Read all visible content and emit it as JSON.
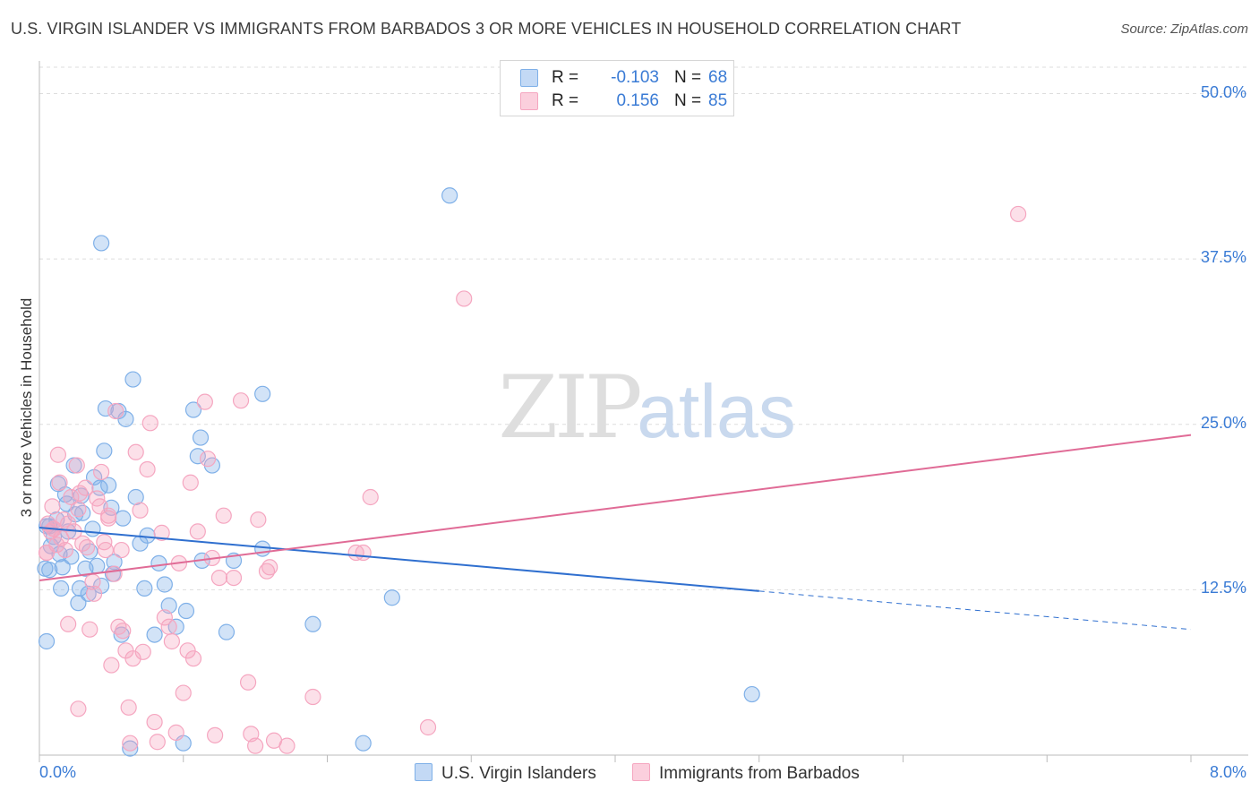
{
  "chart_data": {
    "type": "scatter",
    "title": "U.S. VIRGIN ISLANDER VS IMMIGRANTS FROM BARBADOS 3 OR MORE VEHICLES IN HOUSEHOLD CORRELATION CHART",
    "source": "Source: ZipAtlas.com",
    "ylabel": "3 or more Vehicles in Household",
    "xlabel": "",
    "xlim": [
      0,
      8
    ],
    "ylim": [
      0,
      52
    ],
    "x_tick_labels": {
      "left": "0.0%",
      "right": "8.0%"
    },
    "y_ticks": [
      {
        "value": 50,
        "label": "50.0%"
      },
      {
        "value": 37.5,
        "label": "37.5%"
      },
      {
        "value": 25,
        "label": "25.0%"
      },
      {
        "value": 12.5,
        "label": "12.5%"
      }
    ],
    "watermark": {
      "zip": "ZIP",
      "atlas": "atlas"
    },
    "legend": {
      "series1": {
        "r_label": "R =",
        "r_value": "-0.103",
        "n_label": "N =",
        "n_value": "68"
      },
      "series2": {
        "r_label": "R =",
        "r_value": "0.156",
        "n_label": "N =",
        "n_value": "85"
      }
    },
    "series": [
      {
        "name": "U.S. Virgin Islanders",
        "color": "#7fb0e8",
        "line_color": "#2f6fcf",
        "trend": {
          "x0": 0.0,
          "y0": 17.2,
          "x1": 5.0,
          "y1": 12.4,
          "dash_x1": 8.0,
          "dash_y1": 9.5
        },
        "points": [
          [
            0.05,
            17.3
          ],
          [
            0.07,
            14.0
          ],
          [
            0.08,
            15.8
          ],
          [
            0.1,
            16.5
          ],
          [
            0.12,
            17.8
          ],
          [
            0.13,
            20.5
          ],
          [
            0.14,
            15.2
          ],
          [
            0.15,
            12.6
          ],
          [
            0.16,
            14.2
          ],
          [
            0.18,
            19.7
          ],
          [
            0.19,
            19.0
          ],
          [
            0.2,
            16.9
          ],
          [
            0.22,
            15.0
          ],
          [
            0.24,
            21.9
          ],
          [
            0.25,
            18.2
          ],
          [
            0.27,
            11.5
          ],
          [
            0.28,
            12.6
          ],
          [
            0.29,
            19.6
          ],
          [
            0.3,
            18.3
          ],
          [
            0.32,
            14.1
          ],
          [
            0.34,
            12.2
          ],
          [
            0.35,
            15.4
          ],
          [
            0.37,
            17.1
          ],
          [
            0.38,
            21.0
          ],
          [
            0.4,
            14.3
          ],
          [
            0.42,
            20.2
          ],
          [
            0.43,
            12.8
          ],
          [
            0.45,
            23.0
          ],
          [
            0.46,
            26.2
          ],
          [
            0.48,
            20.4
          ],
          [
            0.5,
            18.7
          ],
          [
            0.51,
            13.7
          ],
          [
            0.52,
            14.6
          ],
          [
            0.55,
            26.0
          ],
          [
            0.57,
            9.1
          ],
          [
            0.58,
            17.9
          ],
          [
            0.6,
            25.4
          ],
          [
            0.63,
            0.5
          ],
          [
            0.65,
            28.4
          ],
          [
            0.67,
            19.5
          ],
          [
            0.7,
            16.0
          ],
          [
            0.73,
            12.6
          ],
          [
            0.75,
            16.6
          ],
          [
            0.8,
            9.1
          ],
          [
            0.83,
            14.5
          ],
          [
            0.87,
            12.9
          ],
          [
            0.9,
            11.3
          ],
          [
            0.95,
            9.7
          ],
          [
            1.0,
            0.9
          ],
          [
            1.02,
            10.9
          ],
          [
            1.07,
            26.1
          ],
          [
            1.1,
            22.6
          ],
          [
            1.12,
            24.0
          ],
          [
            1.13,
            14.7
          ],
          [
            1.2,
            21.9
          ],
          [
            1.3,
            9.3
          ],
          [
            1.35,
            14.7
          ],
          [
            1.55,
            15.6
          ],
          [
            1.55,
            27.3
          ],
          [
            1.9,
            9.9
          ],
          [
            2.25,
            0.9
          ],
          [
            2.45,
            11.9
          ],
          [
            2.85,
            42.3
          ],
          [
            0.43,
            38.7
          ],
          [
            0.05,
            8.6
          ],
          [
            0.04,
            14.1
          ],
          [
            0.07,
            17.3
          ],
          [
            4.95,
            4.6
          ]
        ]
      },
      {
        "name": "Immigrants from Barbados",
        "color": "#f5a6c0",
        "line_color": "#e06b96",
        "trend": {
          "x0": 0.0,
          "y0": 13.2,
          "x1": 8.0,
          "y1": 24.2
        },
        "points": [
          [
            0.05,
            15.3
          ],
          [
            0.06,
            17.5
          ],
          [
            0.08,
            16.9
          ],
          [
            0.09,
            18.8
          ],
          [
            0.1,
            17.1
          ],
          [
            0.12,
            15.9
          ],
          [
            0.13,
            22.7
          ],
          [
            0.14,
            20.6
          ],
          [
            0.15,
            16.4
          ],
          [
            0.17,
            17.8
          ],
          [
            0.18,
            15.5
          ],
          [
            0.2,
            9.9
          ],
          [
            0.22,
            19.5
          ],
          [
            0.24,
            16.9
          ],
          [
            0.26,
            21.9
          ],
          [
            0.27,
            18.6
          ],
          [
            0.28,
            19.8
          ],
          [
            0.3,
            16.0
          ],
          [
            0.32,
            20.2
          ],
          [
            0.33,
            15.7
          ],
          [
            0.35,
            9.5
          ],
          [
            0.37,
            13.1
          ],
          [
            0.38,
            12.2
          ],
          [
            0.4,
            19.4
          ],
          [
            0.42,
            18.8
          ],
          [
            0.43,
            21.4
          ],
          [
            0.45,
            16.1
          ],
          [
            0.46,
            15.5
          ],
          [
            0.48,
            18.1
          ],
          [
            0.5,
            6.8
          ],
          [
            0.52,
            13.7
          ],
          [
            0.53,
            26.0
          ],
          [
            0.55,
            9.7
          ],
          [
            0.57,
            15.5
          ],
          [
            0.58,
            9.4
          ],
          [
            0.6,
            7.9
          ],
          [
            0.62,
            3.6
          ],
          [
            0.63,
            0.9
          ],
          [
            0.65,
            7.3
          ],
          [
            0.67,
            22.9
          ],
          [
            0.7,
            18.5
          ],
          [
            0.72,
            7.8
          ],
          [
            0.75,
            21.6
          ],
          [
            0.77,
            25.1
          ],
          [
            0.8,
            2.5
          ],
          [
            0.82,
            1.0
          ],
          [
            0.85,
            16.8
          ],
          [
            0.87,
            10.4
          ],
          [
            0.9,
            9.7
          ],
          [
            0.92,
            8.6
          ],
          [
            0.95,
            1.7
          ],
          [
            0.97,
            14.5
          ],
          [
            1.0,
            4.7
          ],
          [
            1.03,
            7.9
          ],
          [
            1.05,
            20.6
          ],
          [
            1.07,
            7.3
          ],
          [
            1.1,
            16.9
          ],
          [
            1.15,
            26.7
          ],
          [
            1.17,
            22.4
          ],
          [
            1.2,
            14.9
          ],
          [
            1.22,
            1.5
          ],
          [
            1.25,
            13.4
          ],
          [
            1.28,
            18.1
          ],
          [
            1.35,
            13.4
          ],
          [
            1.4,
            26.8
          ],
          [
            1.45,
            5.5
          ],
          [
            1.47,
            1.6
          ],
          [
            1.5,
            0.7
          ],
          [
            1.52,
            17.8
          ],
          [
            1.58,
            13.9
          ],
          [
            1.6,
            14.2
          ],
          [
            1.63,
            1.1
          ],
          [
            1.72,
            0.7
          ],
          [
            1.9,
            4.4
          ],
          [
            2.2,
            15.3
          ],
          [
            2.25,
            15.3
          ],
          [
            2.3,
            19.5
          ],
          [
            2.7,
            2.1
          ],
          [
            2.95,
            34.5
          ],
          [
            6.8,
            40.9
          ],
          [
            0.05,
            15.3
          ],
          [
            0.27,
            3.5
          ],
          [
            0.1,
            17.1
          ],
          [
            0.2,
            17.5
          ],
          [
            0.48,
            17.9
          ]
        ]
      }
    ]
  }
}
